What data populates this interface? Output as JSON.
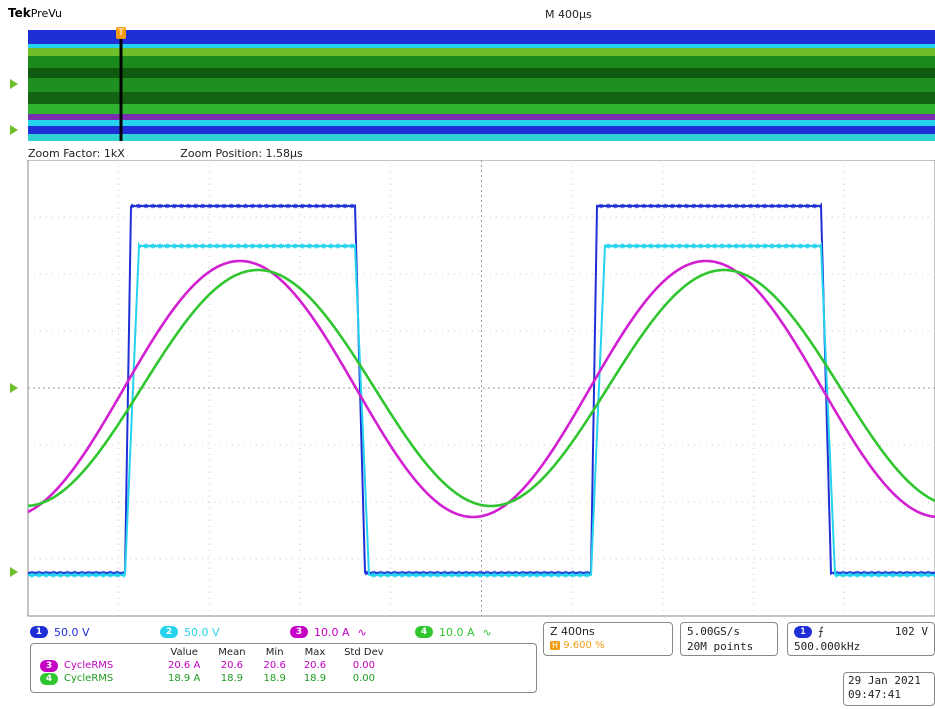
{
  "header": {
    "brand": "Tek",
    "mode": "PreVu",
    "timebase": "M 400µs"
  },
  "zoom": {
    "factor_label": "Zoom Factor: 1kX",
    "position_label": "Zoom Position: 1.58µs"
  },
  "channels": [
    {
      "num": "1",
      "scale": "50.0 V",
      "color": "#1f2fd6",
      "coupling": ""
    },
    {
      "num": "2",
      "scale": "50.0 V",
      "color": "#25d3ee",
      "coupling": ""
    },
    {
      "num": "3",
      "scale": "10.0 A",
      "color": "#c400c4",
      "coupling": "∿"
    },
    {
      "num": "4",
      "scale": "10.0 A",
      "color": "#2fc62f",
      "coupling": "∿"
    }
  ],
  "horizontal": {
    "zoom_scale": "Z 400ns",
    "position": "9.600 %"
  },
  "acquisition": {
    "rate": "5.00GS/s",
    "points": "20M points"
  },
  "trigger": {
    "channel": "1",
    "slope": "⨍",
    "level": "102 V",
    "frequency": "500.000kHz"
  },
  "measurements": {
    "headers": [
      "Value",
      "Mean",
      "Min",
      "Max",
      "Std Dev"
    ],
    "rows": [
      {
        "channel": "3",
        "name": "CycleRMS",
        "value": "20.6 A",
        "mean": "20.6",
        "min": "20.6",
        "max": "20.6",
        "std": "0.00"
      },
      {
        "channel": "4",
        "name": "CycleRMS",
        "value": "18.9 A",
        "mean": "18.9",
        "min": "18.9",
        "max": "18.9",
        "std": "0.00"
      }
    ]
  },
  "datetime": {
    "date": "29 Jan 2021",
    "time": "09:47:41"
  },
  "icons": {
    "ground_marker": "ground-marker-icon",
    "trigger_marker": "trigger-marker-icon"
  }
}
